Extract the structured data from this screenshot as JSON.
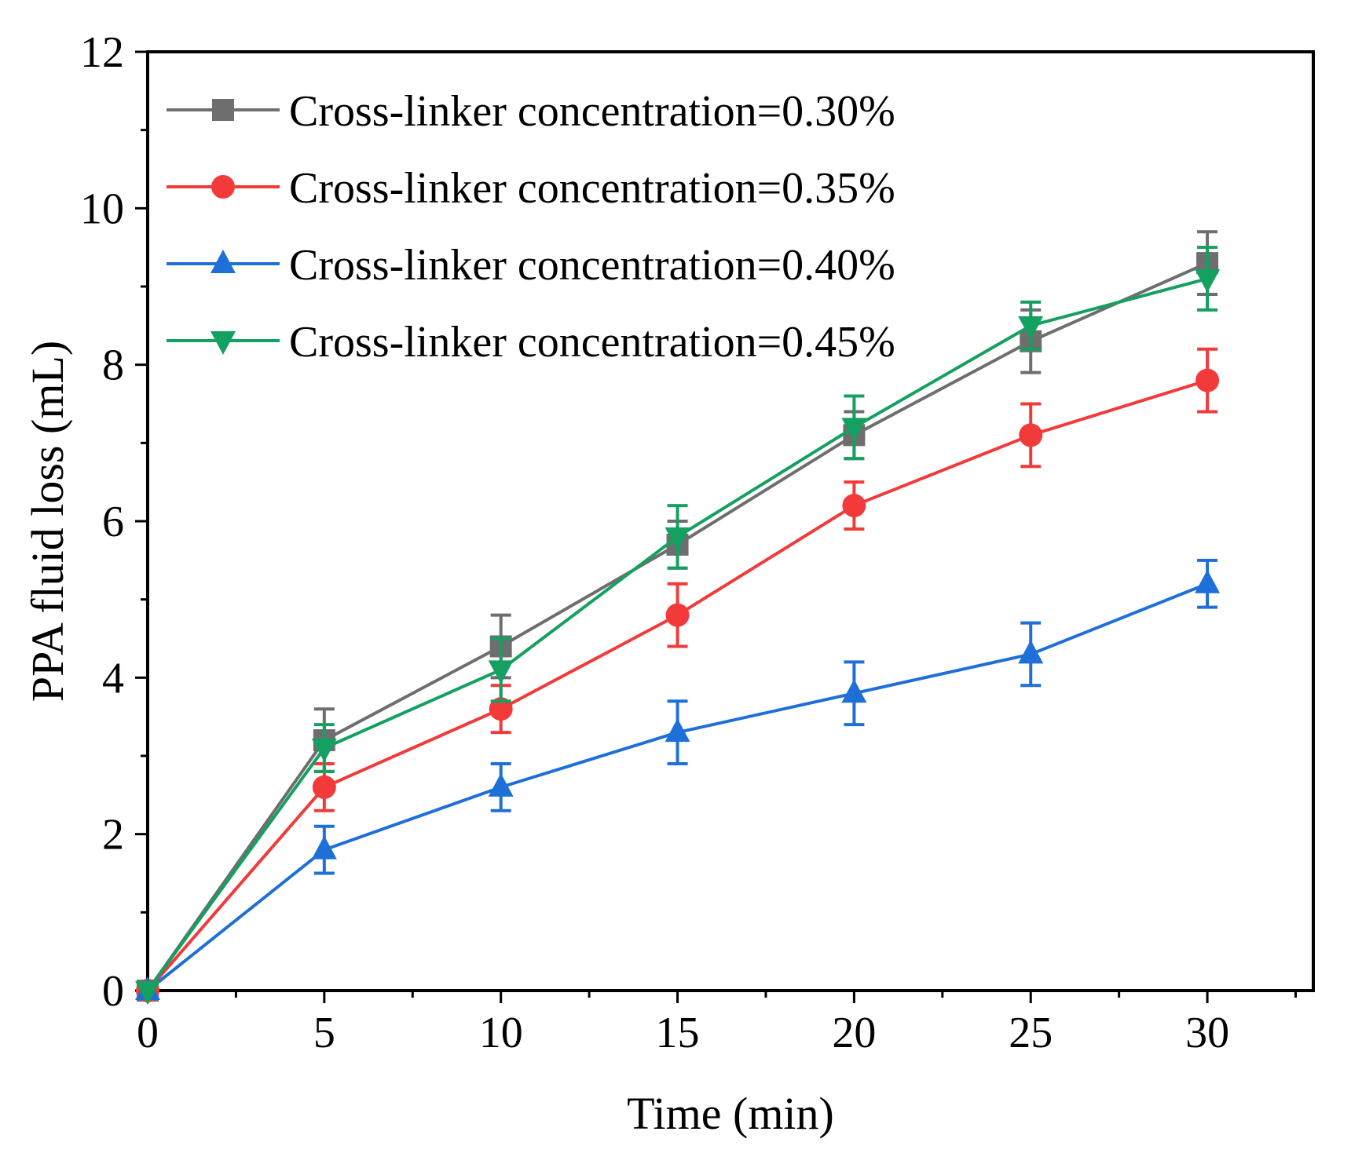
{
  "chart_data": {
    "type": "line",
    "xlabel": "Time (min)",
    "ylabel": "PPA fluid loss (mL)",
    "xlim": [
      0,
      33
    ],
    "ylim": [
      0,
      12
    ],
    "xticks": [
      0,
      5,
      10,
      15,
      20,
      25,
      30
    ],
    "xticks_minor": [
      2.5,
      7.5,
      12.5,
      17.5,
      22.5,
      27.5,
      32.5
    ],
    "yticks": [
      0,
      2,
      4,
      6,
      8,
      10,
      12
    ],
    "yticks_minor": [
      1,
      3,
      5,
      7,
      9,
      11
    ],
    "grid": false,
    "legend_position": "top-left",
    "x": [
      0,
      5,
      10,
      15,
      20,
      25,
      30
    ],
    "series": [
      {
        "name": "Cross-linker concentration=0.30%",
        "color": "#6e6e6e",
        "marker": "square",
        "values": [
          0,
          3.2,
          4.4,
          5.7,
          7.1,
          8.3,
          9.3
        ],
        "errors": [
          0,
          0.4,
          0.4,
          0.3,
          0.3,
          0.4,
          0.4
        ]
      },
      {
        "name": "Cross-linker concentration=0.35%",
        "color": "#f23a3a",
        "marker": "circle",
        "values": [
          0,
          2.6,
          3.6,
          4.8,
          6.2,
          7.1,
          7.8
        ],
        "errors": [
          0,
          0.3,
          0.3,
          0.4,
          0.3,
          0.4,
          0.4
        ]
      },
      {
        "name": "Cross-linker concentration=0.40%",
        "color": "#1f6fd8",
        "marker": "triangle-up",
        "values": [
          0,
          1.8,
          2.6,
          3.3,
          3.8,
          4.3,
          5.2
        ],
        "errors": [
          0,
          0.3,
          0.3,
          0.4,
          0.4,
          0.4,
          0.3
        ]
      },
      {
        "name": "Cross-linker concentration=0.45%",
        "color": "#14a060",
        "marker": "triangle-down",
        "values": [
          0,
          3.1,
          4.1,
          5.8,
          7.2,
          8.5,
          9.1
        ],
        "errors": [
          0,
          0.3,
          0.4,
          0.4,
          0.4,
          0.3,
          0.4
        ]
      }
    ]
  }
}
